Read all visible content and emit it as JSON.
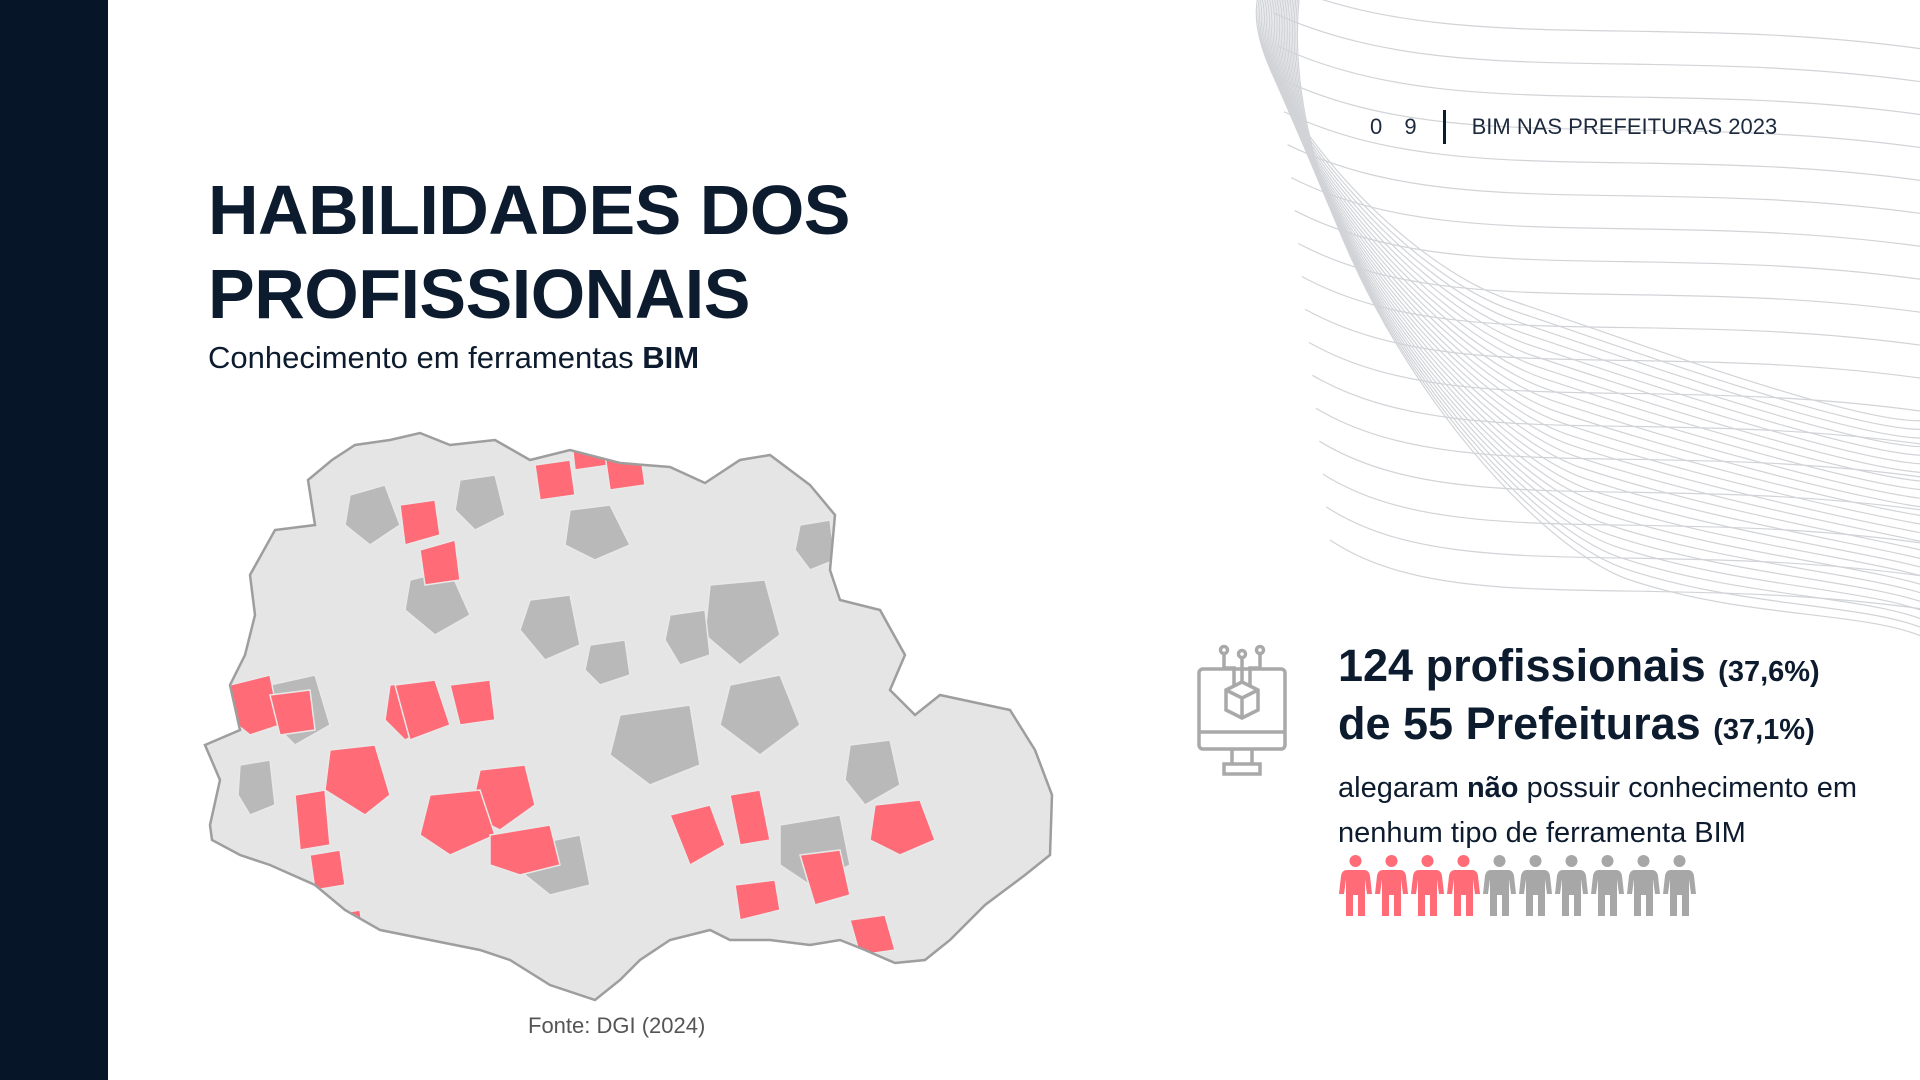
{
  "header": {
    "page_number": "0 9",
    "report_title": "BIM NAS PREFEITURAS 2023"
  },
  "title": {
    "line1": "HABILIDADES DOS",
    "line2": "PROFISSIONAIS"
  },
  "subtitle": {
    "text": "Conhecimento em ferramentas ",
    "bold": "BIM"
  },
  "map": {
    "region": "Paraná",
    "legend_colors": {
      "highlighted": "#ff6b77",
      "other_data": "#b9b9b9",
      "base": "#e5e5e5"
    }
  },
  "source": "Fonte: DGI (2024)",
  "stat": {
    "line1_main": "124 profissionais",
    "line1_pct": "(37,6%)",
    "line2_main": "de 55 Prefeituras",
    "line2_pct": "(37,1%)",
    "desc_before": "alegaram ",
    "desc_bold": "não",
    "desc_after": " possuir conhecimento em nenhum tipo de ferramenta BIM"
  },
  "people_icons": {
    "total": 10,
    "highlighted": 4,
    "highlight_color": "#ff6b77",
    "other_color": "#a7a7a7"
  },
  "icons": {
    "monitor": "monitor-cube-icon",
    "person": "person-icon"
  }
}
